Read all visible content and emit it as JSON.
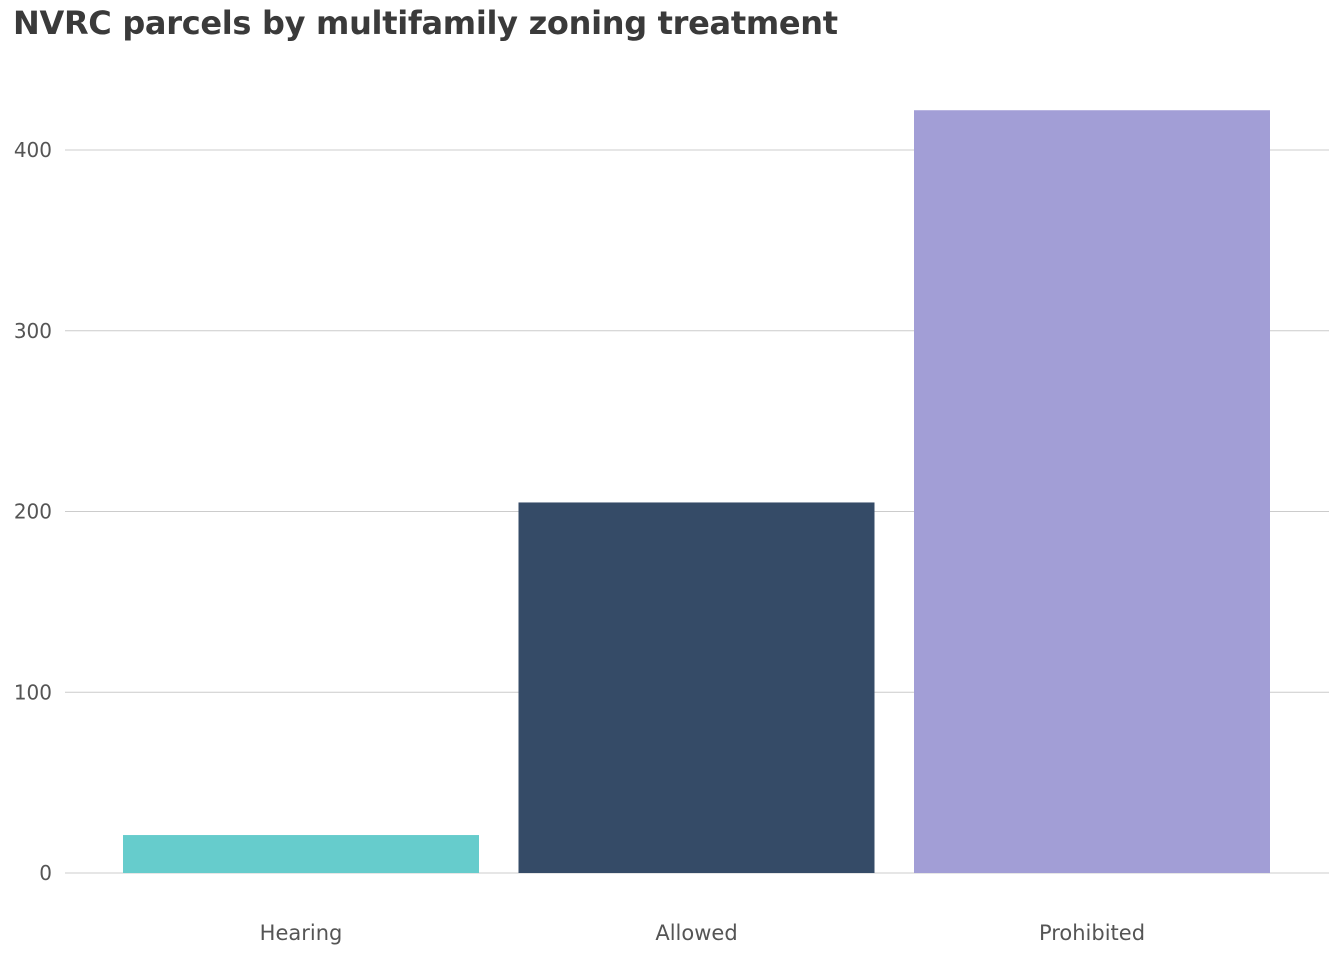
{
  "chart_data": {
    "type": "bar",
    "title": "NVRC parcels by multifamily zoning treatment",
    "xlabel": "",
    "ylabel": "",
    "categories": [
      "Hearing",
      "Allowed",
      "Prohibited"
    ],
    "values": [
      21,
      205,
      422
    ],
    "colors": [
      "#66cccc",
      "#354b67",
      "#a29ed6"
    ],
    "ylim": [
      0,
      420
    ],
    "yticks": [
      0,
      100,
      200,
      300,
      400
    ],
    "grid": true,
    "legend": "none"
  }
}
